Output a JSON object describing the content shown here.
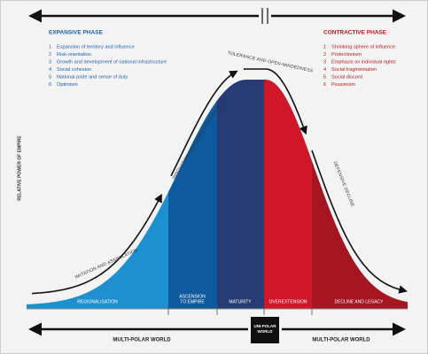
{
  "expansive_phase": {
    "title": "EXPANSIVE PHASE",
    "items": [
      {
        "number": "1",
        "text": "Expansion of territory and influence"
      },
      {
        "number": "2",
        "text": "Risk-orientation"
      },
      {
        "number": "3",
        "text": "Growth and development of national infrastructure"
      },
      {
        "number": "4",
        "text": "Social cohesion"
      },
      {
        "number": "5",
        "text": "National pride and sense of duty"
      },
      {
        "number": "6",
        "text": "Optimism"
      }
    ]
  },
  "contractive_phase": {
    "title": "CONTRACTIVE PHASE",
    "items": [
      {
        "number": "1",
        "text": "Shrinking sphere of influence"
      },
      {
        "number": "2",
        "text": "Protectionism"
      },
      {
        "number": "3",
        "text": "Emphasis on individual rights"
      },
      {
        "number": "4",
        "text": "Social fragmentation"
      },
      {
        "number": "5",
        "text": "Social discord"
      },
      {
        "number": "6",
        "text": "Pessimism"
      }
    ]
  },
  "axis_label": "RELATIVE POWER OF EMPIRE",
  "curve_labels": [
    "IMITATION AND ASSIMILATION",
    "INNOVATION AND COMPETITIVE EDGE",
    "TOLERANCE AND OPEN-MINDEDNESS",
    "DEFENSIVE DECLINE"
  ],
  "stages": [
    {
      "lines": [
        "REGIONALISATION"
      ]
    },
    {
      "lines": [
        "ASCENSION",
        "TO EMPIRE"
      ]
    },
    {
      "lines": [
        "MATURITY"
      ]
    },
    {
      "lines": [
        "OVEREXTENSION"
      ]
    },
    {
      "lines": [
        "DECLINE AND LEGACY"
      ]
    }
  ],
  "bottom": {
    "left": "MULTI-POLAR WORLD",
    "center": [
      "UNI-POLAR",
      "WORLD"
    ],
    "right": "MULTI-POLAR WORLD"
  }
}
